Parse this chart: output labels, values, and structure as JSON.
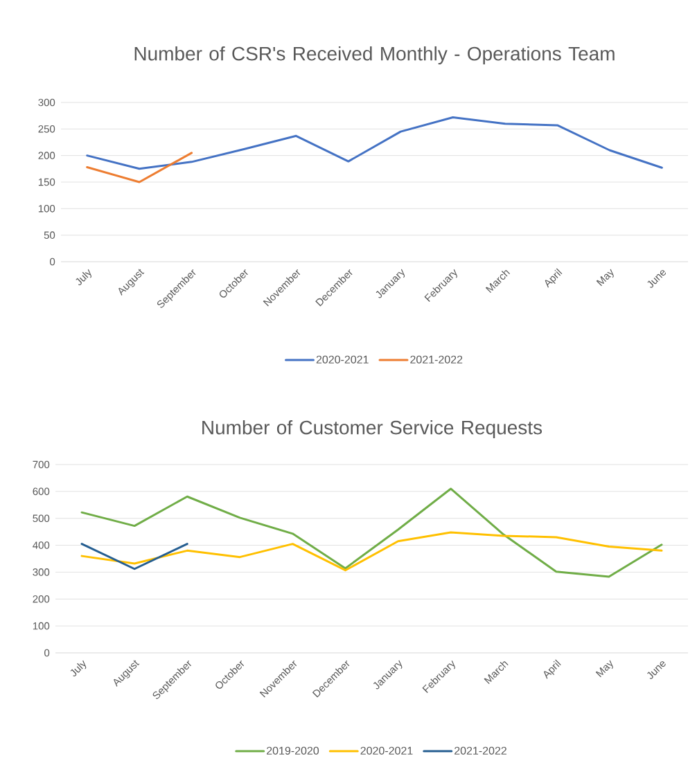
{
  "chart_data": [
    {
      "type": "line",
      "title": "Number of CSR's Received Monthly - Operations Team",
      "categories": [
        "July",
        "August",
        "September",
        "October",
        "November",
        "December",
        "January",
        "February",
        "March",
        "April",
        "May",
        "June"
      ],
      "series": [
        {
          "name": "2020-2021",
          "color": "#4472c4",
          "values": [
            200,
            175,
            188,
            212,
            237,
            189,
            245,
            272,
            260,
            257,
            210,
            177
          ]
        },
        {
          "name": "2021-2022",
          "color": "#ed7d31",
          "values": [
            178,
            150,
            205,
            null,
            null,
            null,
            null,
            null,
            null,
            null,
            null,
            null
          ]
        }
      ],
      "ylim": [
        0,
        300
      ],
      "yticks": [
        0,
        50,
        100,
        150,
        200,
        250,
        300
      ],
      "grid": "y",
      "legend": "bottom",
      "line_style": "solid",
      "marker": "none"
    },
    {
      "type": "line",
      "title": "Number of Customer Service Requests",
      "categories": [
        "July",
        "August",
        "September",
        "October",
        "November",
        "December",
        "January",
        "February",
        "March",
        "April",
        "May",
        "June"
      ],
      "series": [
        {
          "name": "2019-2020",
          "color": "#70ad47",
          "values": [
            522,
            472,
            581,
            502,
            443,
            314,
            458,
            610,
            440,
            302,
            283,
            402
          ]
        },
        {
          "name": "2020-2021",
          "color": "#ffc000",
          "values": [
            360,
            332,
            380,
            356,
            405,
            307,
            415,
            448,
            435,
            430,
            395,
            380
          ]
        },
        {
          "name": "2021-2022",
          "color": "#255e91",
          "values": [
            405,
            312,
            405,
            null,
            null,
            null,
            null,
            null,
            null,
            null,
            null,
            null
          ]
        }
      ],
      "ylim": [
        0,
        700
      ],
      "yticks": [
        0,
        100,
        200,
        300,
        400,
        500,
        600,
        700
      ],
      "grid": "y",
      "legend": "bottom",
      "line_style": "solid",
      "marker": "none"
    }
  ]
}
